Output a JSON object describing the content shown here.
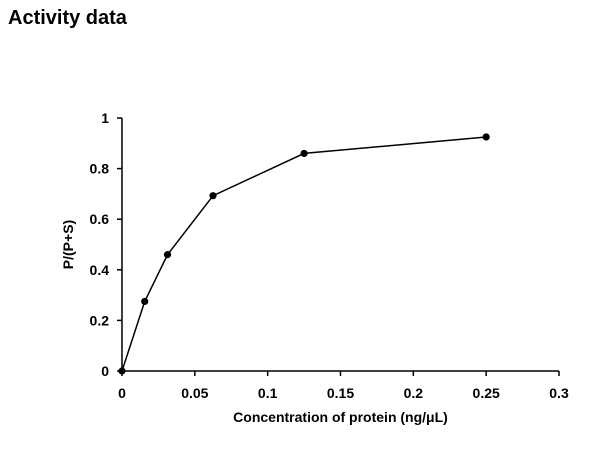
{
  "header": {
    "title": "Activity data"
  },
  "chart_data": {
    "type": "line",
    "xlabel": "Concentration of protein (ng/μL)",
    "ylabel": "P/(P+S)",
    "xlim": [
      0,
      0.3
    ],
    "ylim": [
      0,
      1
    ],
    "x_ticks": [
      0,
      0.05,
      0.1,
      0.15,
      0.2,
      0.25,
      0.3
    ],
    "x_tick_labels": [
      "0",
      "0.05",
      "0.1",
      "0.15",
      "0.2",
      "0.25",
      "0.3"
    ],
    "y_ticks": [
      0,
      0.2,
      0.4,
      0.6,
      0.8,
      1
    ],
    "y_tick_labels": [
      "0",
      "0.2",
      "0.4",
      "0.6",
      "0.8",
      "1"
    ],
    "grid": false,
    "legend": "none",
    "series": [
      {
        "x": [
          0,
          0.0156,
          0.03125,
          0.0625,
          0.125,
          0.25
        ],
        "y": [
          0,
          0.275,
          0.46,
          0.693,
          0.86,
          0.925
        ],
        "color": "#000000",
        "marker": "circle"
      }
    ]
  }
}
